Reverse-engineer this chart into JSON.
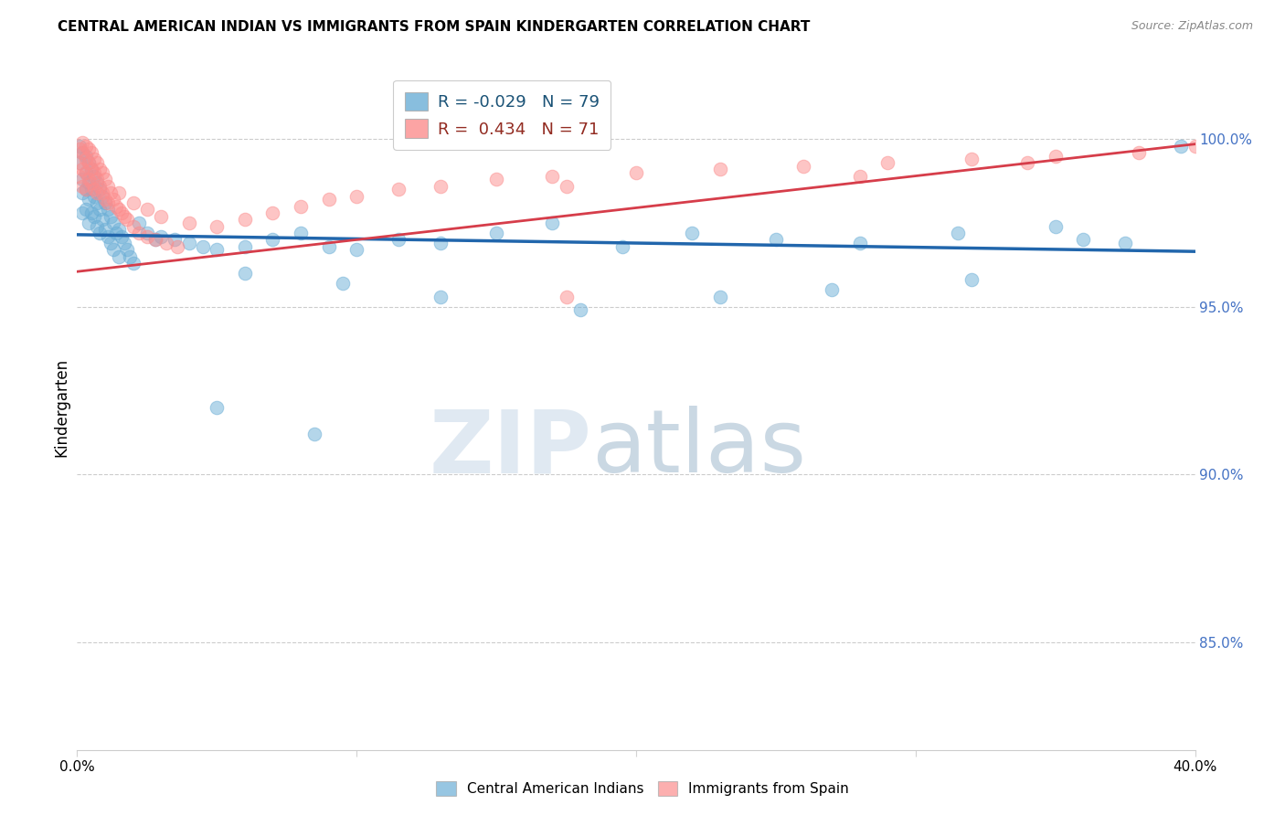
{
  "title": "CENTRAL AMERICAN INDIAN VS IMMIGRANTS FROM SPAIN KINDERGARTEN CORRELATION CHART",
  "source": "Source: ZipAtlas.com",
  "ylabel": "Kindergarten",
  "ytick_labels": [
    "85.0%",
    "90.0%",
    "95.0%",
    "100.0%"
  ],
  "ytick_values": [
    0.85,
    0.9,
    0.95,
    1.0
  ],
  "xlim": [
    0.0,
    0.4
  ],
  "ylim": [
    0.818,
    1.022
  ],
  "legend_r_blue": "-0.029",
  "legend_n_blue": "79",
  "legend_r_pink": "0.434",
  "legend_n_pink": "71",
  "blue_color": "#6baed6",
  "pink_color": "#fc8d8d",
  "blue_line_color": "#2166ac",
  "pink_line_color": "#d63d4a",
  "blue_line_x": [
    0.0,
    0.4
  ],
  "blue_line_y": [
    0.9715,
    0.9665
  ],
  "pink_line_x": [
    0.0,
    0.4
  ],
  "pink_line_y": [
    0.9605,
    0.9985
  ],
  "blue_scatter_x": [
    0.001,
    0.001,
    0.002,
    0.002,
    0.002,
    0.002,
    0.003,
    0.003,
    0.003,
    0.003,
    0.004,
    0.004,
    0.004,
    0.004,
    0.005,
    0.005,
    0.005,
    0.006,
    0.006,
    0.006,
    0.007,
    0.007,
    0.007,
    0.008,
    0.008,
    0.008,
    0.009,
    0.009,
    0.01,
    0.01,
    0.011,
    0.011,
    0.012,
    0.012,
    0.013,
    0.013,
    0.014,
    0.015,
    0.015,
    0.016,
    0.017,
    0.018,
    0.019,
    0.02,
    0.022,
    0.025,
    0.028,
    0.03,
    0.035,
    0.04,
    0.045,
    0.05,
    0.06,
    0.07,
    0.08,
    0.09,
    0.1,
    0.115,
    0.13,
    0.15,
    0.17,
    0.195,
    0.22,
    0.25,
    0.28,
    0.315,
    0.35,
    0.375,
    0.06,
    0.095,
    0.13,
    0.18,
    0.23,
    0.27,
    0.32,
    0.36,
    0.395,
    0.05,
    0.085
  ],
  "blue_scatter_y": [
    0.998,
    0.993,
    0.996,
    0.988,
    0.984,
    0.978,
    0.995,
    0.99,
    0.985,
    0.979,
    0.993,
    0.987,
    0.982,
    0.975,
    0.991,
    0.985,
    0.978,
    0.989,
    0.983,
    0.977,
    0.987,
    0.981,
    0.974,
    0.985,
    0.979,
    0.972,
    0.983,
    0.976,
    0.981,
    0.973,
    0.979,
    0.971,
    0.977,
    0.969,
    0.975,
    0.967,
    0.972,
    0.973,
    0.965,
    0.971,
    0.969,
    0.967,
    0.965,
    0.963,
    0.975,
    0.972,
    0.97,
    0.971,
    0.97,
    0.969,
    0.968,
    0.967,
    0.968,
    0.97,
    0.972,
    0.968,
    0.967,
    0.97,
    0.969,
    0.972,
    0.975,
    0.968,
    0.972,
    0.97,
    0.969,
    0.972,
    0.974,
    0.969,
    0.96,
    0.957,
    0.953,
    0.949,
    0.953,
    0.955,
    0.958,
    0.97,
    0.998,
    0.92,
    0.912
  ],
  "pink_scatter_x": [
    0.001,
    0.001,
    0.001,
    0.002,
    0.002,
    0.002,
    0.002,
    0.003,
    0.003,
    0.003,
    0.003,
    0.004,
    0.004,
    0.004,
    0.005,
    0.005,
    0.005,
    0.006,
    0.006,
    0.006,
    0.007,
    0.007,
    0.007,
    0.008,
    0.008,
    0.009,
    0.009,
    0.01,
    0.01,
    0.011,
    0.011,
    0.012,
    0.013,
    0.014,
    0.015,
    0.016,
    0.017,
    0.018,
    0.02,
    0.022,
    0.025,
    0.028,
    0.032,
    0.036,
    0.015,
    0.02,
    0.025,
    0.03,
    0.04,
    0.05,
    0.06,
    0.07,
    0.08,
    0.09,
    0.1,
    0.115,
    0.13,
    0.15,
    0.17,
    0.2,
    0.23,
    0.26,
    0.29,
    0.32,
    0.35,
    0.175,
    0.28,
    0.34,
    0.38,
    0.4,
    0.175
  ],
  "pink_scatter_y": [
    0.997,
    0.993,
    0.989,
    0.999,
    0.996,
    0.991,
    0.986,
    0.998,
    0.994,
    0.99,
    0.985,
    0.997,
    0.993,
    0.988,
    0.996,
    0.991,
    0.987,
    0.994,
    0.99,
    0.985,
    0.993,
    0.988,
    0.984,
    0.991,
    0.986,
    0.99,
    0.984,
    0.988,
    0.982,
    0.986,
    0.981,
    0.984,
    0.982,
    0.98,
    0.979,
    0.978,
    0.977,
    0.976,
    0.974,
    0.972,
    0.971,
    0.97,
    0.969,
    0.968,
    0.984,
    0.981,
    0.979,
    0.977,
    0.975,
    0.974,
    0.976,
    0.978,
    0.98,
    0.982,
    0.983,
    0.985,
    0.986,
    0.988,
    0.989,
    0.99,
    0.991,
    0.992,
    0.993,
    0.994,
    0.995,
    0.986,
    0.989,
    0.993,
    0.996,
    0.998,
    0.953
  ]
}
